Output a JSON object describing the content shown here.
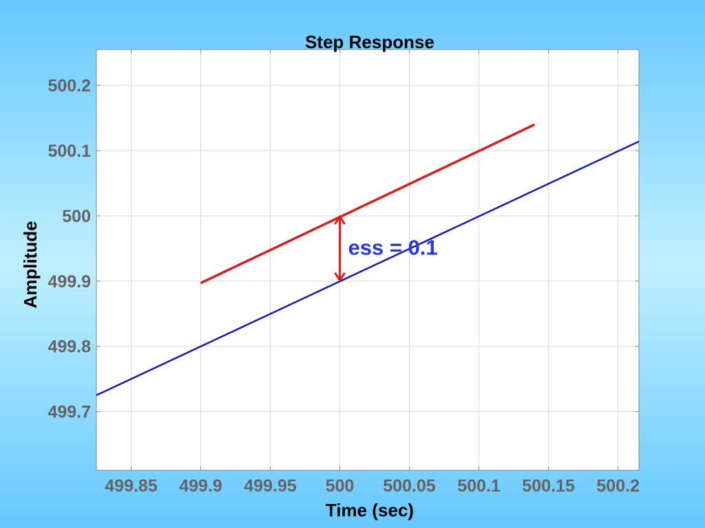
{
  "chart_data": {
    "type": "line",
    "title": "Step Response",
    "xlabel": "Time (sec)",
    "ylabel": "Amplitude",
    "xlim": [
      499.825,
      500.215
    ],
    "ylim": [
      499.61,
      500.255
    ],
    "xticks": [
      499.85,
      499.9,
      499.95,
      500,
      500.05,
      500.1,
      500.15,
      500.2
    ],
    "xtick_labels": [
      "499.85",
      "499.9",
      "499.95",
      "500",
      "500.05",
      "500.1",
      "500.15",
      "500.2"
    ],
    "yticks": [
      499.7,
      499.8,
      499.9,
      500,
      500.1,
      500.2
    ],
    "ytick_labels": [
      "499.7",
      "499.8",
      "499.9",
      "500",
      "500.1",
      "500.2"
    ],
    "grid": true,
    "series": [
      {
        "color": "#e11b1b",
        "x": [
          499.9,
          500.14
        ],
        "y": [
          499.897,
          500.14
        ]
      },
      {
        "color": "#1414cc",
        "x": [
          499.825,
          500.215
        ],
        "y": [
          499.725,
          500.114
        ]
      }
    ],
    "annotations": [
      {
        "text": "ess = 0.1",
        "color": "#2b35e0"
      },
      {
        "type": "double-arrow",
        "x": 500,
        "y": [
          499.9,
          500.0
        ],
        "color": "#e11b1b"
      }
    ]
  }
}
